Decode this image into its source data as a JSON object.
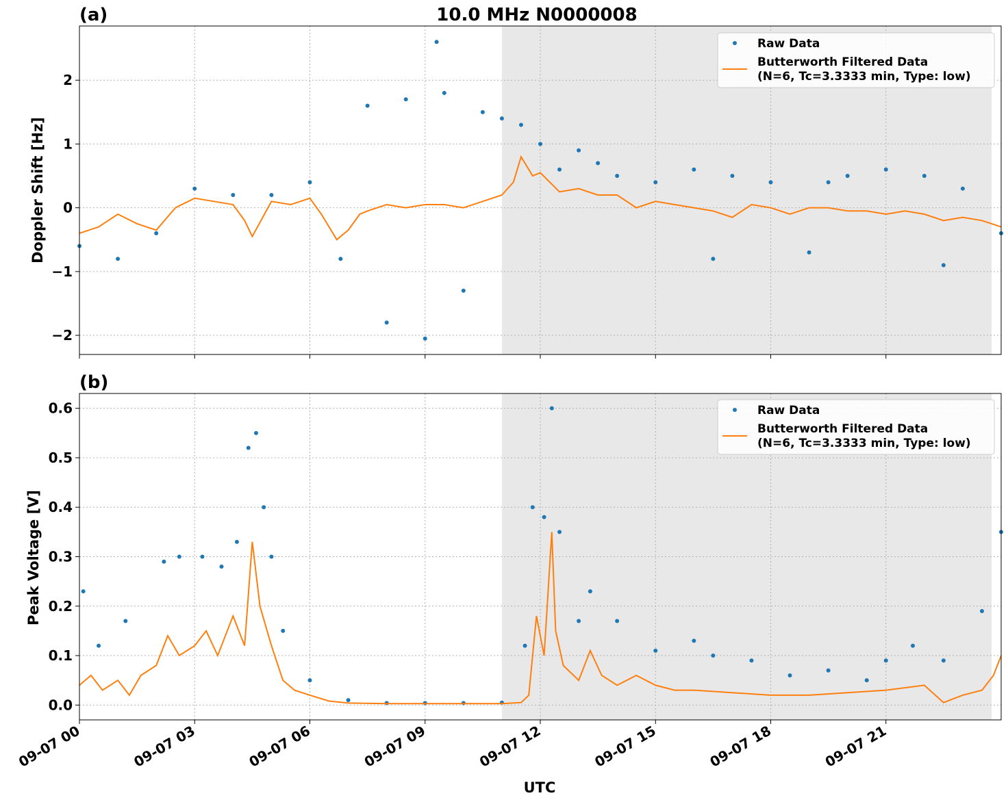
{
  "figure": {
    "title": "10.0 MHz N0000008",
    "xlabel": "UTC",
    "x_tick_labels": [
      "09-07 00",
      "09-07 03",
      "09-07 06",
      "09-07 09",
      "09-07 12",
      "09-07 15",
      "09-07 18",
      "09-07 21"
    ]
  },
  "colors": {
    "raw": "#1f77b4",
    "filtered": "#ff7f0e",
    "night_shade": "#e8e8e8",
    "grid": "#b0b0b0"
  },
  "chart_data": [
    {
      "type": "scatter",
      "panel_label": "(a)",
      "ylabel": "Doppler Shift [Hz]",
      "x_unit": "hours UTC since 09-07 00:00",
      "xlim": [
        0,
        24
      ],
      "ylim": [
        -2.3,
        2.85
      ],
      "y_ticks": [
        2,
        1,
        0,
        -1,
        -2
      ],
      "y_tick_labels": [
        "2",
        "1",
        "0",
        "−1",
        "−2"
      ],
      "grid": true,
      "legend_position": "top-right",
      "shaded_interval": [
        11.0,
        23.75
      ],
      "legend": {
        "raw_label": "Raw Data",
        "filtered_label_line1": "Butterworth Filtered Data",
        "filtered_label_line2": "(N=6, Tc=3.3333 min, Type: low)"
      },
      "series": [
        {
          "name": "Butterworth Filtered Data",
          "kind": "line",
          "x": [
            0,
            0.5,
            1.0,
            1.5,
            2.0,
            2.5,
            3.0,
            3.5,
            4.0,
            4.3,
            4.5,
            5.0,
            5.5,
            6.0,
            6.3,
            6.7,
            7.0,
            7.3,
            7.5,
            8.0,
            8.5,
            9.0,
            9.5,
            10.0,
            10.5,
            11.0,
            11.3,
            11.5,
            11.8,
            12.0,
            12.5,
            13.0,
            13.5,
            14.0,
            14.5,
            15.0,
            15.5,
            16.0,
            16.5,
            17.0,
            17.5,
            18.0,
            18.5,
            19.0,
            19.5,
            20.0,
            20.5,
            21.0,
            21.5,
            22.0,
            22.5,
            23.0,
            23.5,
            24.0
          ],
          "y": [
            -0.4,
            -0.3,
            -0.1,
            -0.25,
            -0.35,
            0.0,
            0.15,
            0.1,
            0.05,
            -0.2,
            -0.45,
            0.1,
            0.05,
            0.15,
            -0.1,
            -0.5,
            -0.35,
            -0.1,
            -0.05,
            0.05,
            0.0,
            0.05,
            0.05,
            0.0,
            0.1,
            0.2,
            0.4,
            0.8,
            0.5,
            0.55,
            0.25,
            0.3,
            0.2,
            0.2,
            0.0,
            0.1,
            0.05,
            0.0,
            -0.05,
            -0.15,
            0.05,
            0.0,
            -0.1,
            0.0,
            0.0,
            -0.05,
            -0.05,
            -0.1,
            -0.05,
            -0.1,
            -0.2,
            -0.15,
            -0.2,
            -0.3
          ]
        },
        {
          "name": "Raw Data",
          "kind": "scatter",
          "x": [
            0,
            1,
            2,
            3,
            4,
            5,
            6,
            6.8,
            7.5,
            8.0,
            8.5,
            9.0,
            9.3,
            9.5,
            10.0,
            10.5,
            11.0,
            11.5,
            12.0,
            12.5,
            13.0,
            13.5,
            14.0,
            15.0,
            16.0,
            16.5,
            17.0,
            18.0,
            19.0,
            19.5,
            20.0,
            21.0,
            22.0,
            22.5,
            23.0,
            24.0
          ],
          "y": [
            -0.6,
            -0.8,
            -0.4,
            0.3,
            0.2,
            0.2,
            0.4,
            -0.8,
            1.6,
            -1.8,
            1.7,
            -2.05,
            2.6,
            1.8,
            -1.3,
            1.5,
            1.4,
            1.3,
            1.0,
            0.6,
            0.9,
            0.7,
            0.5,
            0.4,
            0.6,
            -0.8,
            0.5,
            0.4,
            -0.7,
            0.4,
            0.5,
            0.6,
            0.5,
            -0.9,
            0.3,
            -0.4
          ]
        }
      ]
    },
    {
      "type": "scatter",
      "panel_label": "(b)",
      "ylabel": "Peak Voltage [V]",
      "x_unit": "hours UTC since 09-07 00:00",
      "xlim": [
        0,
        24
      ],
      "ylim": [
        -0.03,
        0.63
      ],
      "y_ticks": [
        0.6,
        0.5,
        0.4,
        0.3,
        0.2,
        0.1,
        0.0
      ],
      "y_tick_labels": [
        "0.6",
        "0.5",
        "0.4",
        "0.3",
        "0.2",
        "0.1",
        "0.0"
      ],
      "grid": true,
      "legend_position": "top-right",
      "shaded_interval": [
        11.0,
        23.75
      ],
      "legend": {
        "raw_label": "Raw Data",
        "filtered_label_line1": "Butterworth Filtered Data",
        "filtered_label_line2": "(N=6, Tc=3.3333 min, Type: low)"
      },
      "series": [
        {
          "name": "Butterworth Filtered Data",
          "kind": "line",
          "x": [
            0,
            0.3,
            0.6,
            1.0,
            1.3,
            1.6,
            2.0,
            2.3,
            2.6,
            3.0,
            3.3,
            3.6,
            4.0,
            4.3,
            4.5,
            4.7,
            5.0,
            5.3,
            5.6,
            6.0,
            6.5,
            7.0,
            8.0,
            9.0,
            10.0,
            11.0,
            11.5,
            11.7,
            11.9,
            12.1,
            12.3,
            12.4,
            12.6,
            13.0,
            13.3,
            13.6,
            14.0,
            14.5,
            15.0,
            15.5,
            16.0,
            17.0,
            18.0,
            19.0,
            20.0,
            21.0,
            22.0,
            22.5,
            23.0,
            23.5,
            23.8,
            24.0
          ],
          "y": [
            0.04,
            0.06,
            0.03,
            0.05,
            0.02,
            0.06,
            0.08,
            0.14,
            0.1,
            0.12,
            0.15,
            0.1,
            0.18,
            0.12,
            0.33,
            0.2,
            0.12,
            0.05,
            0.03,
            0.02,
            0.008,
            0.004,
            0.003,
            0.003,
            0.003,
            0.003,
            0.005,
            0.02,
            0.18,
            0.1,
            0.35,
            0.15,
            0.08,
            0.05,
            0.11,
            0.06,
            0.04,
            0.06,
            0.04,
            0.03,
            0.03,
            0.025,
            0.02,
            0.02,
            0.025,
            0.03,
            0.04,
            0.005,
            0.02,
            0.03,
            0.06,
            0.1
          ]
        },
        {
          "name": "Raw Data",
          "kind": "scatter",
          "x": [
            0.1,
            0.5,
            1.2,
            2.2,
            2.6,
            3.2,
            3.7,
            4.1,
            4.4,
            4.6,
            4.8,
            5.0,
            5.3,
            6.0,
            7.0,
            8.0,
            9.0,
            10.0,
            11.0,
            11.6,
            11.8,
            12.1,
            12.3,
            12.5,
            13.0,
            13.3,
            14.0,
            15.0,
            16.0,
            16.5,
            17.5,
            18.5,
            19.5,
            20.5,
            21.0,
            21.7,
            22.5,
            23.5,
            24.0
          ],
          "y": [
            0.23,
            0.12,
            0.17,
            0.29,
            0.3,
            0.3,
            0.28,
            0.33,
            0.52,
            0.55,
            0.4,
            0.3,
            0.15,
            0.05,
            0.01,
            0.004,
            0.004,
            0.004,
            0.005,
            0.12,
            0.4,
            0.38,
            0.6,
            0.35,
            0.17,
            0.23,
            0.17,
            0.11,
            0.13,
            0.1,
            0.09,
            0.06,
            0.07,
            0.05,
            0.09,
            0.12,
            0.09,
            0.19,
            0.35
          ]
        }
      ]
    }
  ]
}
